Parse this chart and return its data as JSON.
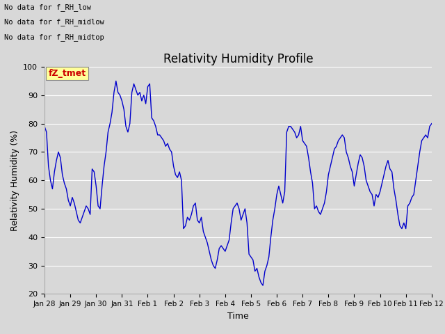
{
  "title": "Relativity Humidity Profile",
  "xlabel": "Time",
  "ylabel": "Relativity Humidity (%)",
  "ylim": [
    20,
    100
  ],
  "line_color": "#0000cc",
  "bg_color": "#d8d8d8",
  "annotations": [
    "No data for f_RH_low",
    "No data for f̅RH̅_midlow",
    "No data for f̅RH̅_midtop"
  ],
  "tick_labels": [
    "Jan 28",
    "Jan 29",
    "Jan 30",
    "Jan 31",
    "Feb 1",
    "Feb 2",
    "Feb 3",
    "Feb 4",
    "Feb 5",
    "Feb 6",
    "Feb 7",
    "Feb 8",
    "Feb 9",
    "Feb 10",
    "Feb 11",
    "Feb 12"
  ],
  "y_values": [
    79,
    77,
    65,
    60,
    57,
    63,
    67,
    70,
    68,
    62,
    59,
    57,
    53,
    51,
    54,
    52,
    49,
    46,
    45,
    47,
    49,
    51,
    50,
    48,
    64,
    63,
    58,
    51,
    50,
    58,
    65,
    70,
    77,
    80,
    84,
    91,
    95,
    91,
    90,
    88,
    85,
    79,
    77,
    80,
    91,
    94,
    92,
    90,
    91,
    88,
    90,
    87,
    93,
    94,
    82,
    81,
    79,
    76,
    76,
    75,
    74,
    72,
    73,
    71,
    70,
    65,
    62,
    61,
    63,
    60,
    43,
    44,
    47,
    46,
    48,
    51,
    52,
    46,
    45,
    47,
    42,
    40,
    38,
    35,
    32,
    30,
    29,
    32,
    36,
    37,
    36,
    35,
    37,
    39,
    45,
    50,
    51,
    52,
    50,
    46,
    48,
    50,
    45,
    34,
    33,
    32,
    28,
    29,
    26,
    24,
    23,
    28,
    30,
    33,
    40,
    46,
    50,
    55,
    58,
    55,
    52,
    56,
    77,
    79,
    79,
    78,
    77,
    75,
    76,
    79,
    74,
    73,
    72,
    68,
    63,
    59,
    50,
    51,
    49,
    48,
    50,
    52,
    56,
    62,
    65,
    68,
    71,
    72,
    74,
    75,
    76,
    75,
    70,
    68,
    65,
    63,
    58,
    62,
    66,
    69,
    68,
    65,
    60,
    58,
    56,
    55,
    51,
    55,
    54,
    56,
    59,
    62,
    65,
    67,
    64,
    63,
    57,
    53,
    48,
    44,
    43,
    45,
    43,
    51,
    52,
    54,
    55,
    60,
    65,
    70,
    74,
    75,
    76,
    75,
    79,
    80
  ],
  "title_fontsize": 12,
  "axis_label_fontsize": 9,
  "tick_fontsize": 7.5,
  "legend_fontsize": 9
}
